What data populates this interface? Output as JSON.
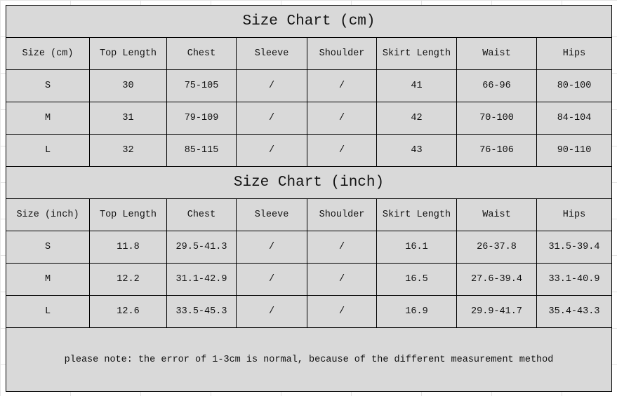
{
  "cm": {
    "title": "Size Chart (cm)",
    "headers": [
      "Size (cm)",
      "Top Length",
      "Chest",
      "Sleeve",
      "Shoulder",
      "Skirt Length",
      "Waist",
      "Hips"
    ],
    "rows": [
      [
        "S",
        "30",
        "75-105",
        "/",
        "/",
        "41",
        "66-96",
        "80-100"
      ],
      [
        "M",
        "31",
        "79-109",
        "/",
        "/",
        "42",
        "70-100",
        "84-104"
      ],
      [
        "L",
        "32",
        "85-115",
        "/",
        "/",
        "43",
        "76-106",
        "90-110"
      ]
    ]
  },
  "inch": {
    "title": "Size Chart (inch)",
    "headers": [
      "Size (inch)",
      "Top Length",
      "Chest",
      "Sleeve",
      "Shoulder",
      "Skirt Length",
      "Waist",
      "Hips"
    ],
    "rows": [
      [
        "S",
        "11.8",
        "29.5-41.3",
        "/",
        "/",
        "16.1",
        "26-37.8",
        "31.5-39.4"
      ],
      [
        "M",
        "12.2",
        "31.1-42.9",
        "/",
        "/",
        "16.5",
        "27.6-39.4",
        "33.1-40.9"
      ],
      [
        "L",
        "12.6",
        "33.5-45.3",
        "/",
        "/",
        "16.9",
        "29.9-41.7",
        "35.4-43.3"
      ]
    ]
  },
  "note": "please note: the error of 1-3cm is normal, because of the different measurement method"
}
